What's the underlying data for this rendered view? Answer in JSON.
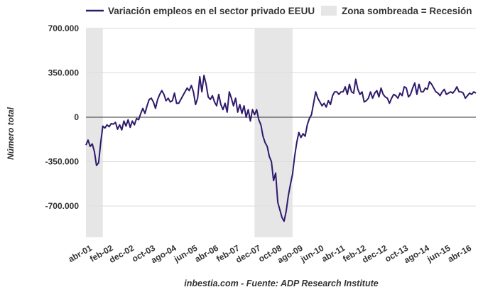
{
  "chart_data": {
    "type": "line",
    "title": "",
    "ylabel": "Número total",
    "xlabel": "",
    "ylim": [
      -900000,
      700000
    ],
    "yticks": [
      700000,
      350000,
      0,
      -350000,
      -700000
    ],
    "ytick_labels": [
      "700.000",
      "350.000",
      "0",
      "-350.000",
      "-700.000"
    ],
    "x_tick_labels": [
      {
        "label": "abr-01",
        "x": "2001-04"
      },
      {
        "label": "feb-02",
        "x": "2002-02"
      },
      {
        "label": "dec-02",
        "x": "2002-12"
      },
      {
        "label": "oct-03",
        "x": "2003-10"
      },
      {
        "label": "ago-04",
        "x": "2004-08"
      },
      {
        "label": "jun-05",
        "x": "2005-06"
      },
      {
        "label": "abr-06",
        "x": "2006-04"
      },
      {
        "label": "feb-07",
        "x": "2007-02"
      },
      {
        "label": "dec-07",
        "x": "2007-12"
      },
      {
        "label": "oct-08",
        "x": "2008-10"
      },
      {
        "label": "ago-09",
        "x": "2009-08"
      },
      {
        "label": "jun-10",
        "x": "2010-06"
      },
      {
        "label": "abr-11",
        "x": "2011-04"
      },
      {
        "label": "feb-12",
        "x": "2012-02"
      },
      {
        "label": "dec-12",
        "x": "2012-12"
      },
      {
        "label": "oct-13",
        "x": "2013-10"
      },
      {
        "label": "ago-14",
        "x": "2014-08"
      },
      {
        "label": "jun-15",
        "x": "2015-06"
      },
      {
        "label": "abr-16",
        "x": "2016-04"
      }
    ],
    "xlim": [
      "2001-04",
      "2016-09"
    ],
    "grid": "horizontal",
    "legend_placement": "top",
    "series": [
      {
        "name": "Variación empleos en el sector privado EEUU",
        "color": "#2e1a6b",
        "points": [
          [
            "2001-04",
            -220000
          ],
          [
            "2001-05",
            -180000
          ],
          [
            "2001-06",
            -230000
          ],
          [
            "2001-07",
            -210000
          ],
          [
            "2001-08",
            -270000
          ],
          [
            "2001-09",
            -380000
          ],
          [
            "2001-10",
            -360000
          ],
          [
            "2001-11",
            -200000
          ],
          [
            "2001-12",
            -70000
          ],
          [
            "2002-01",
            -85000
          ],
          [
            "2002-02",
            -60000
          ],
          [
            "2002-03",
            -75000
          ],
          [
            "2002-04",
            -50000
          ],
          [
            "2002-05",
            -55000
          ],
          [
            "2002-06",
            -40000
          ],
          [
            "2002-07",
            -95000
          ],
          [
            "2002-08",
            -60000
          ],
          [
            "2002-09",
            -100000
          ],
          [
            "2002-10",
            -30000
          ],
          [
            "2002-11",
            -70000
          ],
          [
            "2002-12",
            -20000
          ],
          [
            "2003-01",
            -80000
          ],
          [
            "2003-02",
            -30000
          ],
          [
            "2003-03",
            -60000
          ],
          [
            "2003-04",
            -10000
          ],
          [
            "2003-05",
            -20000
          ],
          [
            "2003-06",
            30000
          ],
          [
            "2003-07",
            70000
          ],
          [
            "2003-08",
            30000
          ],
          [
            "2003-09",
            90000
          ],
          [
            "2003-10",
            140000
          ],
          [
            "2003-11",
            150000
          ],
          [
            "2003-12",
            120000
          ],
          [
            "2004-01",
            70000
          ],
          [
            "2004-02",
            140000
          ],
          [
            "2004-03",
            180000
          ],
          [
            "2004-04",
            210000
          ],
          [
            "2004-05",
            180000
          ],
          [
            "2004-06",
            130000
          ],
          [
            "2004-07",
            150000
          ],
          [
            "2004-08",
            120000
          ],
          [
            "2004-09",
            130000
          ],
          [
            "2004-10",
            190000
          ],
          [
            "2004-11",
            110000
          ],
          [
            "2004-12",
            110000
          ],
          [
            "2005-01",
            140000
          ],
          [
            "2005-02",
            170000
          ],
          [
            "2005-03",
            200000
          ],
          [
            "2005-04",
            230000
          ],
          [
            "2005-05",
            210000
          ],
          [
            "2005-06",
            250000
          ],
          [
            "2005-07",
            200000
          ],
          [
            "2005-08",
            100000
          ],
          [
            "2005-09",
            150000
          ],
          [
            "2005-10",
            320000
          ],
          [
            "2005-11",
            200000
          ],
          [
            "2005-12",
            330000
          ],
          [
            "2006-01",
            260000
          ],
          [
            "2006-02",
            160000
          ],
          [
            "2006-03",
            140000
          ],
          [
            "2006-04",
            170000
          ],
          [
            "2006-05",
            120000
          ],
          [
            "2006-06",
            90000
          ],
          [
            "2006-07",
            180000
          ],
          [
            "2006-08",
            100000
          ],
          [
            "2006-09",
            60000
          ],
          [
            "2006-10",
            110000
          ],
          [
            "2006-11",
            40000
          ],
          [
            "2006-12",
            200000
          ],
          [
            "2007-01",
            150000
          ],
          [
            "2007-02",
            90000
          ],
          [
            "2007-03",
            150000
          ],
          [
            "2007-04",
            40000
          ],
          [
            "2007-05",
            100000
          ],
          [
            "2007-06",
            30000
          ],
          [
            "2007-07",
            90000
          ],
          [
            "2007-08",
            0
          ],
          [
            "2007-09",
            60000
          ],
          [
            "2007-10",
            -30000
          ],
          [
            "2007-11",
            60000
          ],
          [
            "2007-12",
            20000
          ],
          [
            "2008-01",
            60000
          ],
          [
            "2008-02",
            -20000
          ],
          [
            "2008-03",
            -60000
          ],
          [
            "2008-04",
            -150000
          ],
          [
            "2008-05",
            -200000
          ],
          [
            "2008-06",
            -230000
          ],
          [
            "2008-07",
            -310000
          ],
          [
            "2008-08",
            -350000
          ],
          [
            "2008-09",
            -500000
          ],
          [
            "2008-10",
            -440000
          ],
          [
            "2008-11",
            -670000
          ],
          [
            "2008-12",
            -730000
          ],
          [
            "2009-01",
            -790000
          ],
          [
            "2009-02",
            -820000
          ],
          [
            "2009-03",
            -740000
          ],
          [
            "2009-04",
            -620000
          ],
          [
            "2009-05",
            -530000
          ],
          [
            "2009-06",
            -450000
          ],
          [
            "2009-07",
            -310000
          ],
          [
            "2009-08",
            -200000
          ],
          [
            "2009-09",
            -120000
          ],
          [
            "2009-10",
            -160000
          ],
          [
            "2009-11",
            -130000
          ],
          [
            "2009-12",
            -150000
          ],
          [
            "2010-01",
            -60000
          ],
          [
            "2010-02",
            -10000
          ],
          [
            "2010-03",
            20000
          ],
          [
            "2010-04",
            110000
          ],
          [
            "2010-05",
            200000
          ],
          [
            "2010-06",
            150000
          ],
          [
            "2010-07",
            120000
          ],
          [
            "2010-08",
            90000
          ],
          [
            "2010-09",
            110000
          ],
          [
            "2010-10",
            80000
          ],
          [
            "2010-11",
            130000
          ],
          [
            "2010-12",
            100000
          ],
          [
            "2011-01",
            170000
          ],
          [
            "2011-02",
            200000
          ],
          [
            "2011-03",
            200000
          ],
          [
            "2011-04",
            180000
          ],
          [
            "2011-05",
            200000
          ],
          [
            "2011-06",
            200000
          ],
          [
            "2011-07",
            240000
          ],
          [
            "2011-08",
            180000
          ],
          [
            "2011-09",
            260000
          ],
          [
            "2011-10",
            200000
          ],
          [
            "2011-11",
            190000
          ],
          [
            "2011-12",
            300000
          ],
          [
            "2012-01",
            220000
          ],
          [
            "2012-02",
            180000
          ],
          [
            "2012-03",
            200000
          ],
          [
            "2012-04",
            120000
          ],
          [
            "2012-05",
            130000
          ],
          [
            "2012-06",
            150000
          ],
          [
            "2012-07",
            200000
          ],
          [
            "2012-08",
            150000
          ],
          [
            "2012-09",
            190000
          ],
          [
            "2012-10",
            210000
          ],
          [
            "2012-11",
            160000
          ],
          [
            "2012-12",
            230000
          ],
          [
            "2013-01",
            180000
          ],
          [
            "2013-02",
            160000
          ],
          [
            "2013-03",
            150000
          ],
          [
            "2013-04",
            110000
          ],
          [
            "2013-05",
            150000
          ],
          [
            "2013-06",
            180000
          ],
          [
            "2013-07",
            170000
          ],
          [
            "2013-08",
            150000
          ],
          [
            "2013-09",
            190000
          ],
          [
            "2013-10",
            170000
          ],
          [
            "2013-11",
            240000
          ],
          [
            "2013-12",
            230000
          ],
          [
            "2014-01",
            160000
          ],
          [
            "2014-02",
            180000
          ],
          [
            "2014-03",
            230000
          ],
          [
            "2014-04",
            270000
          ],
          [
            "2014-05",
            180000
          ],
          [
            "2014-06",
            260000
          ],
          [
            "2014-07",
            200000
          ],
          [
            "2014-08",
            200000
          ],
          [
            "2014-09",
            230000
          ],
          [
            "2014-10",
            220000
          ],
          [
            "2014-11",
            280000
          ],
          [
            "2014-12",
            260000
          ],
          [
            "2015-01",
            230000
          ],
          [
            "2015-02",
            200000
          ],
          [
            "2015-03",
            190000
          ],
          [
            "2015-04",
            170000
          ],
          [
            "2015-05",
            200000
          ],
          [
            "2015-06",
            220000
          ],
          [
            "2015-07",
            180000
          ],
          [
            "2015-08",
            190000
          ],
          [
            "2015-09",
            200000
          ],
          [
            "2015-10",
            190000
          ],
          [
            "2015-11",
            210000
          ],
          [
            "2015-12",
            240000
          ],
          [
            "2016-01",
            200000
          ],
          [
            "2016-02",
            200000
          ],
          [
            "2016-03",
            190000
          ],
          [
            "2016-04",
            150000
          ],
          [
            "2016-05",
            170000
          ],
          [
            "2016-06",
            190000
          ],
          [
            "2016-07",
            180000
          ],
          [
            "2016-08",
            200000
          ],
          [
            "2016-09",
            190000
          ]
        ]
      }
    ],
    "recessions": [
      {
        "start": "2001-04",
        "end": "2001-12"
      },
      {
        "start": "2007-12",
        "end": "2009-06"
      }
    ],
    "legend": {
      "series_label": "Variación empleos en el sector privado EEUU",
      "shade_label": "Zona sombreada = Recesión"
    },
    "colors": {
      "line": "#2e1a6b",
      "recession": "#e6e6e6",
      "grid": "#dddddd",
      "zero_line": "#333333"
    }
  },
  "footer": {
    "source": "inbestia.com - Fuente: ADP Research Institute"
  }
}
